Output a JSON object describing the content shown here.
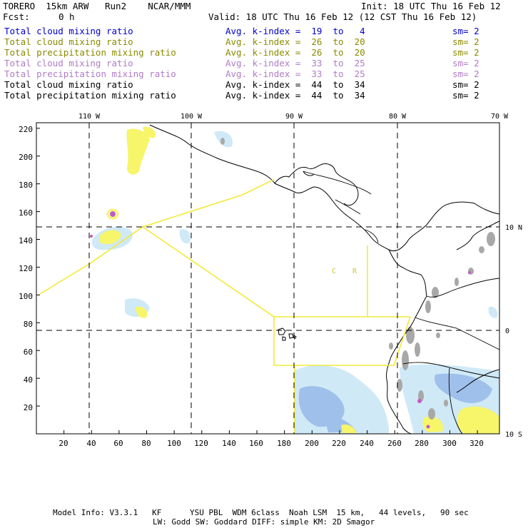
{
  "header": {
    "model": "TORERO  15km ARW   Run2    NCAR/MMM",
    "init": "Init: 18 UTC Thu 16 Feb 12",
    "fcst_label": "Fcst:",
    "fcst_value": "0 h",
    "valid": "Valid: 18 UTC Thu 16 Feb 12 (12 CST Thu 16 Feb 12)"
  },
  "legend": [
    {
      "field": "Total cloud mixing ratio",
      "kindex": "Avg. k-index =  19  to   4",
      "sm": "sm= 2",
      "color": "#0000cc"
    },
    {
      "field": "Total cloud mixing ratio",
      "kindex": "Avg. k-index =  26  to  20",
      "sm": "sm= 2",
      "color": "#8a8a00"
    },
    {
      "field": "Total precipitation mixing ratio",
      "kindex": "Avg. k-index =  26  to  20",
      "sm": "sm= 2",
      "color": "#8a8a00"
    },
    {
      "field": "Total cloud mixing ratio",
      "kindex": "Avg. k-index =  33  to  25",
      "sm": "sm= 2",
      "color": "#b07cc6"
    },
    {
      "field": "Total precipitation mixing ratio",
      "kindex": "Avg. k-index =  33  to  25",
      "sm": "sm= 2",
      "color": "#b07cc6"
    },
    {
      "field": "Total cloud mixing ratio",
      "kindex": "Avg. k-index =  44  to  34",
      "sm": "sm= 2",
      "color": "#000000"
    },
    {
      "field": "Total precipitation mixing ratio",
      "kindex": "Avg. k-index =  44  to  34",
      "sm": "sm= 2",
      "color": "#000000"
    }
  ],
  "axes": {
    "x_ticks": [
      20,
      40,
      60,
      80,
      100,
      120,
      140,
      160,
      180,
      200,
      220,
      240,
      260,
      280,
      300,
      320
    ],
    "y_ticks": [
      20,
      40,
      60,
      80,
      100,
      120,
      140,
      160,
      180,
      200,
      220
    ],
    "x_range": [
      0,
      336
    ],
    "y_range": [
      0,
      224
    ],
    "lon_labels": [
      {
        "text": "110 W",
        "x": 38
      },
      {
        "text": "100 W",
        "x": 112
      },
      {
        "text": "90 W",
        "x": 186
      },
      {
        "text": "80 W",
        "x": 260
      },
      {
        "text": "70 W",
        "x": 334
      }
    ],
    "lat_labels": [
      {
        "text": "10 N",
        "y": 149
      },
      {
        "text": "0",
        "y": 76
      },
      {
        "text": "10 S",
        "y": 0
      }
    ]
  },
  "map_labels": [
    {
      "text": "C",
      "x": 215,
      "y": 118
    },
    {
      "text": "R",
      "x": 230,
      "y": 118
    }
  ],
  "colors": {
    "cloud_light": "#cfe9f7",
    "cloud_med": "#9fc0ea",
    "precip": "#f7f56a",
    "precip_dark": "#e0d43a",
    "magenta": "#c05cc0",
    "gray": "#a8a8a8",
    "boundary_yellow": "#f2ea3a"
  },
  "footer": {
    "line1": "Model Info: V3.3.1   KF      YSU PBL  WDM 6class  Noah LSM  15 km,   44 levels,   90 sec",
    "line2": "LW: Godd SW: Goddard DIFF: simple KM: 2D Smagor"
  }
}
